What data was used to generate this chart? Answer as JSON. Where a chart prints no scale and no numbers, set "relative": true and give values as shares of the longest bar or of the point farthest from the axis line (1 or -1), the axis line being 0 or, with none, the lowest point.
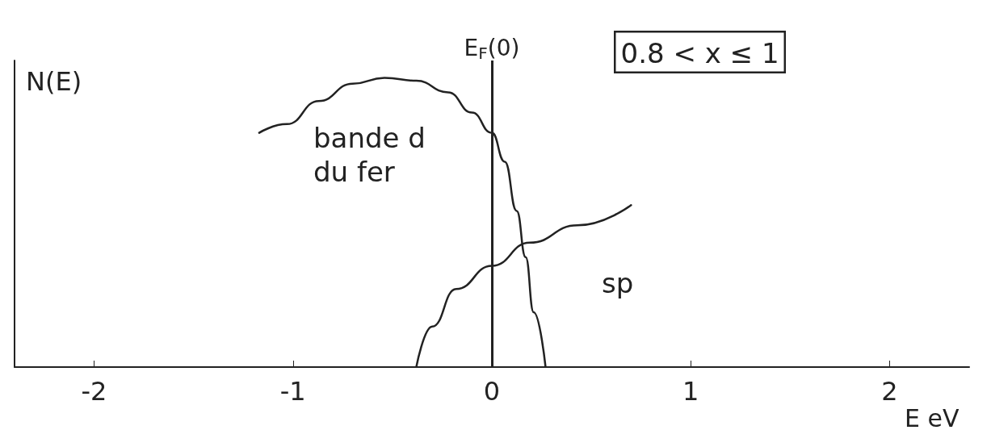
{
  "chart_data": {
    "type": "line",
    "relative": true,
    "xlabel": "E eV",
    "ylabel": "N(E)",
    "xlim": [
      -2.4,
      2.4
    ],
    "xticks": [
      -2,
      -1,
      0,
      1,
      2
    ],
    "grid": false,
    "marker": "none",
    "line_style": "solid",
    "series": [
      {
        "color": "#222222",
        "x": [
          -1.17,
          -1.03,
          -0.87,
          -0.7,
          -0.54,
          -0.38,
          -0.22,
          -0.1,
          0,
          0.065,
          0.125,
          0.17,
          0.21,
          0.27
        ],
        "values": [
          0.81,
          0.84,
          0.92,
          0.98,
          1,
          0.99,
          0.95,
          0.88,
          0.81,
          0.71,
          0.54,
          0.38,
          0.19,
          0
        ]
      },
      {
        "color": "#222222",
        "x": [
          -0.38,
          -0.3,
          -0.18,
          0,
          0.19,
          0.43,
          0.7
        ],
        "values": [
          0,
          0.14,
          0.27,
          0.35,
          0.43,
          0.49,
          0.56
        ]
      }
    ],
    "ref_lines": [
      {
        "axis": "x",
        "value": 0,
        "label": "E$_{F}$(0)",
        "color": "#222222"
      }
    ],
    "annotations": [
      "bande d\ndu fer",
      "sp",
      "0.8 < x ≤ 1"
    ]
  }
}
